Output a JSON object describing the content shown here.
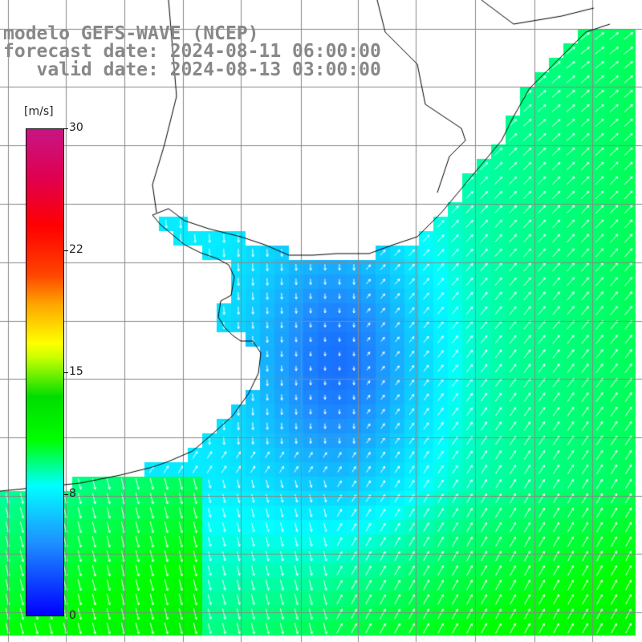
{
  "title": {
    "line1": "modelo GEFS-WAVE (NCEP)",
    "line2": "forecast date: 2024-08-11 06:00:00",
    "line3": "   valid date: 2024-08-13 03:00:00"
  },
  "colorbar": {
    "unit": "[m/s]",
    "ticks": [
      "30",
      "22",
      "15",
      "8",
      "0"
    ],
    "colors": [
      "#0000ff",
      "#1e90ff",
      "#00ffff",
      "#00ff00",
      "#ffff00",
      "#ff0000",
      "#c71585"
    ]
  },
  "map": {
    "land_color": "#ffffff",
    "grid_color": "#888888",
    "coast_color": "#000000",
    "arrow_color": "#ffffff"
  },
  "icons": [
    "wind-vector-arrow-icon"
  ]
}
